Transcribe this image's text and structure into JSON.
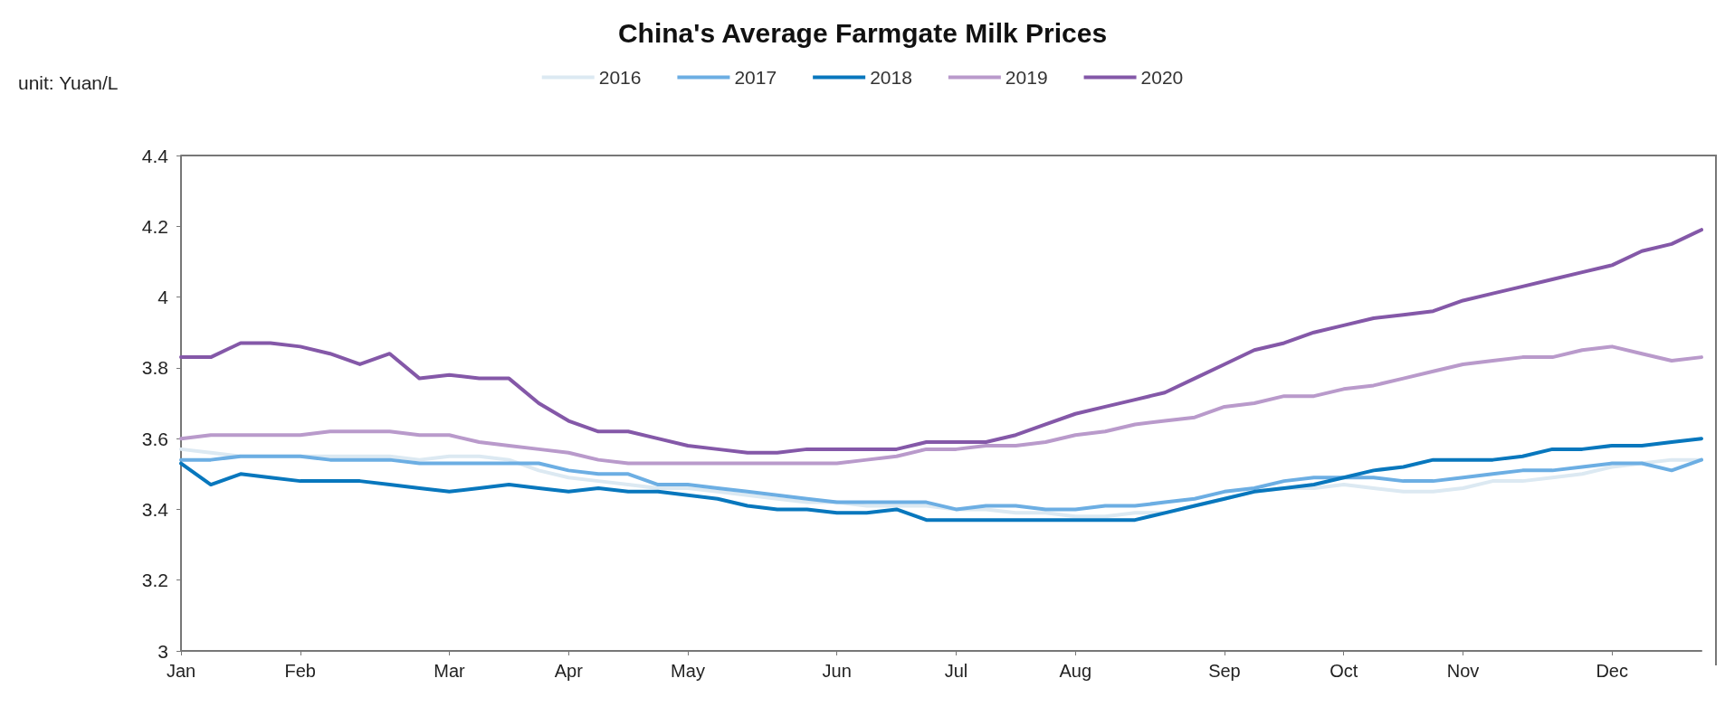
{
  "chart_data": {
    "type": "line",
    "title": "China's Average Farmgate Milk Prices",
    "ylabel": "unit: Yuan/L",
    "categories": [
      "Jan",
      null,
      null,
      null,
      "Feb",
      null,
      null,
      null,
      null,
      "Mar",
      null,
      null,
      null,
      "Apr",
      null,
      null,
      null,
      "May",
      null,
      null,
      null,
      null,
      "Jun",
      null,
      null,
      null,
      "Jul",
      null,
      null,
      null,
      "Aug",
      null,
      null,
      null,
      null,
      "Sep",
      null,
      null,
      null,
      "Oct",
      null,
      null,
      null,
      "Nov",
      null,
      null,
      null,
      null,
      "Dec",
      null,
      null,
      null
    ],
    "series": [
      {
        "name": "2016",
        "color": "#dce9f2",
        "values": [
          3.57,
          3.56,
          3.55,
          3.55,
          3.55,
          3.55,
          3.55,
          3.55,
          3.54,
          3.55,
          3.55,
          3.54,
          3.51,
          3.49,
          3.48,
          3.47,
          3.46,
          3.46,
          3.45,
          3.44,
          3.43,
          3.42,
          3.42,
          3.41,
          3.41,
          3.41,
          3.4,
          3.4,
          3.39,
          3.39,
          3.38,
          3.38,
          3.39,
          3.39,
          3.41,
          3.43,
          3.45,
          3.46,
          3.46,
          3.47,
          3.46,
          3.45,
          3.45,
          3.46,
          3.48,
          3.48,
          3.49,
          3.5,
          3.52,
          3.53,
          3.54,
          3.54
        ]
      },
      {
        "name": "2017",
        "color": "#6caee3",
        "values": [
          3.54,
          3.54,
          3.55,
          3.55,
          3.55,
          3.54,
          3.54,
          3.54,
          3.53,
          3.53,
          3.53,
          3.53,
          3.53,
          3.51,
          3.5,
          3.5,
          3.47,
          3.47,
          3.46,
          3.45,
          3.44,
          3.43,
          3.42,
          3.42,
          3.42,
          3.42,
          3.4,
          3.41,
          3.41,
          3.4,
          3.4,
          3.41,
          3.41,
          3.42,
          3.43,
          3.45,
          3.46,
          3.48,
          3.49,
          3.49,
          3.49,
          3.48,
          3.48,
          3.49,
          3.5,
          3.51,
          3.51,
          3.52,
          3.53,
          3.53,
          3.51,
          3.54
        ]
      },
      {
        "name": "2018",
        "color": "#0877bd",
        "values": [
          3.53,
          3.47,
          3.5,
          3.49,
          3.48,
          3.48,
          3.48,
          3.47,
          3.46,
          3.45,
          3.46,
          3.47,
          3.46,
          3.45,
          3.46,
          3.45,
          3.45,
          3.44,
          3.43,
          3.41,
          3.4,
          3.4,
          3.39,
          3.39,
          3.4,
          3.37,
          3.37,
          3.37,
          3.37,
          3.37,
          3.37,
          3.37,
          3.37,
          3.39,
          3.41,
          3.43,
          3.45,
          3.46,
          3.47,
          3.49,
          3.51,
          3.52,
          3.54,
          3.54,
          3.54,
          3.55,
          3.57,
          3.57,
          3.58,
          3.58,
          3.59,
          3.6
        ]
      },
      {
        "name": "2019",
        "color": "#b99acb",
        "values": [
          3.6,
          3.61,
          3.61,
          3.61,
          3.61,
          3.62,
          3.62,
          3.62,
          3.61,
          3.61,
          3.59,
          3.58,
          3.57,
          3.56,
          3.54,
          3.53,
          3.53,
          3.53,
          3.53,
          3.53,
          3.53,
          3.53,
          3.53,
          3.54,
          3.55,
          3.57,
          3.57,
          3.58,
          3.58,
          3.59,
          3.61,
          3.62,
          3.64,
          3.65,
          3.66,
          3.69,
          3.7,
          3.72,
          3.72,
          3.74,
          3.75,
          3.77,
          3.79,
          3.81,
          3.82,
          3.83,
          3.83,
          3.85,
          3.86,
          3.84,
          3.82,
          3.83
        ]
      },
      {
        "name": "2020",
        "color": "#8458a8",
        "values": [
          3.83,
          3.83,
          3.87,
          3.87,
          3.86,
          3.84,
          3.81,
          3.84,
          3.77,
          3.78,
          3.77,
          3.77,
          3.7,
          3.65,
          3.62,
          3.62,
          3.6,
          3.58,
          3.57,
          3.56,
          3.56,
          3.57,
          3.57,
          3.57,
          3.57,
          3.59,
          3.59,
          3.59,
          3.61,
          3.64,
          3.67,
          3.69,
          3.71,
          3.73,
          3.77,
          3.81,
          3.85,
          3.87,
          3.9,
          3.92,
          3.94,
          3.95,
          3.96,
          3.99,
          4.01,
          4.03,
          4.05,
          4.07,
          4.09,
          4.13,
          4.15,
          4.19
        ]
      }
    ],
    "ylim": [
      3,
      4.4
    ],
    "yticks": [
      3,
      3.2,
      3.4,
      3.6,
      3.8,
      4,
      4.2,
      4.4
    ],
    "legend": "top",
    "marker": "none",
    "line_style": "solid"
  }
}
